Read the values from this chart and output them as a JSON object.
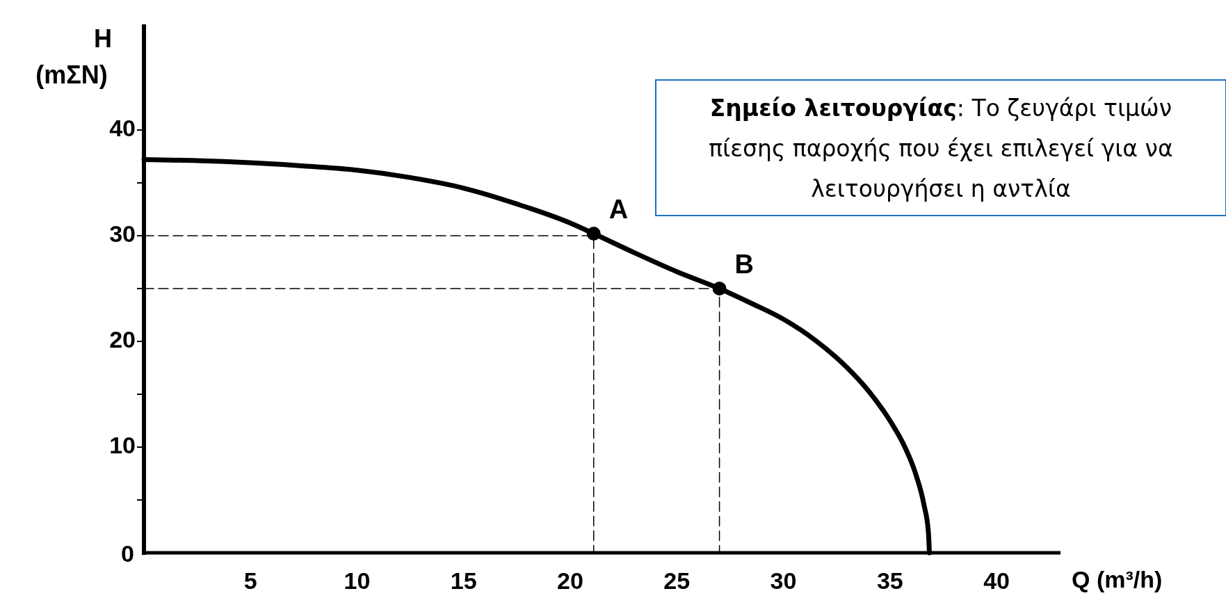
{
  "chart_data": {
    "type": "line",
    "xlabel": "Q (m³/h)",
    "ylabel": "H (mΣΝ)",
    "xlim": [
      0,
      43
    ],
    "ylim": [
      0,
      50
    ],
    "xticks": [
      5,
      10,
      15,
      20,
      25,
      30,
      35,
      40
    ],
    "yticks": [
      0,
      {
        "value": 5,
        "label": null
      },
      10,
      {
        "value": 15,
        "label": null
      },
      20,
      {
        "value": 25,
        "label": null
      },
      30,
      {
        "value": 35,
        "label": null
      },
      40
    ],
    "grid": false,
    "series": [
      {
        "color": "#000000",
        "x": [
          0,
          2.5,
          5,
          7.5,
          10,
          12.5,
          15,
          17.5,
          20,
          21.1,
          23,
          25,
          27,
          28.5,
          30,
          31.5,
          33,
          34,
          35,
          35.7,
          36.2,
          36.6,
          36.8,
          36.85
        ],
        "values": [
          37.2,
          37.1,
          36.9,
          36.6,
          36.2,
          35.5,
          34.5,
          33,
          31.2,
          30.2,
          28.4,
          26.6,
          25,
          23.6,
          22.1,
          20.1,
          17.5,
          15.3,
          12.5,
          10,
          7.5,
          4.5,
          2,
          0
        ]
      },
      {
        "color": "#000000",
        "line_style": "dashed",
        "x": [
          0,
          21.1,
          21.1
        ],
        "values": [
          30,
          30,
          0
        ]
      },
      {
        "color": "#000000",
        "line_style": "dashed",
        "x": [
          0,
          27,
          27
        ],
        "values": [
          25,
          25,
          0
        ]
      },
      {
        "type": "scatter",
        "color": "#000000",
        "marker": "circle",
        "x": [
          21.1,
          27
        ],
        "values": [
          30.2,
          25
        ]
      }
    ],
    "annotations": [
      {
        "text": "A",
        "x": 21.1,
        "y": 30.2
      },
      {
        "text": "B",
        "x": 27,
        "y": 25
      },
      "Σημείο λειτουργίας: Το ζευγάρι τιμών πίεσης παροχής που έχει επιλεγεί για να λειτουργήσει η αντλία"
    ]
  }
}
